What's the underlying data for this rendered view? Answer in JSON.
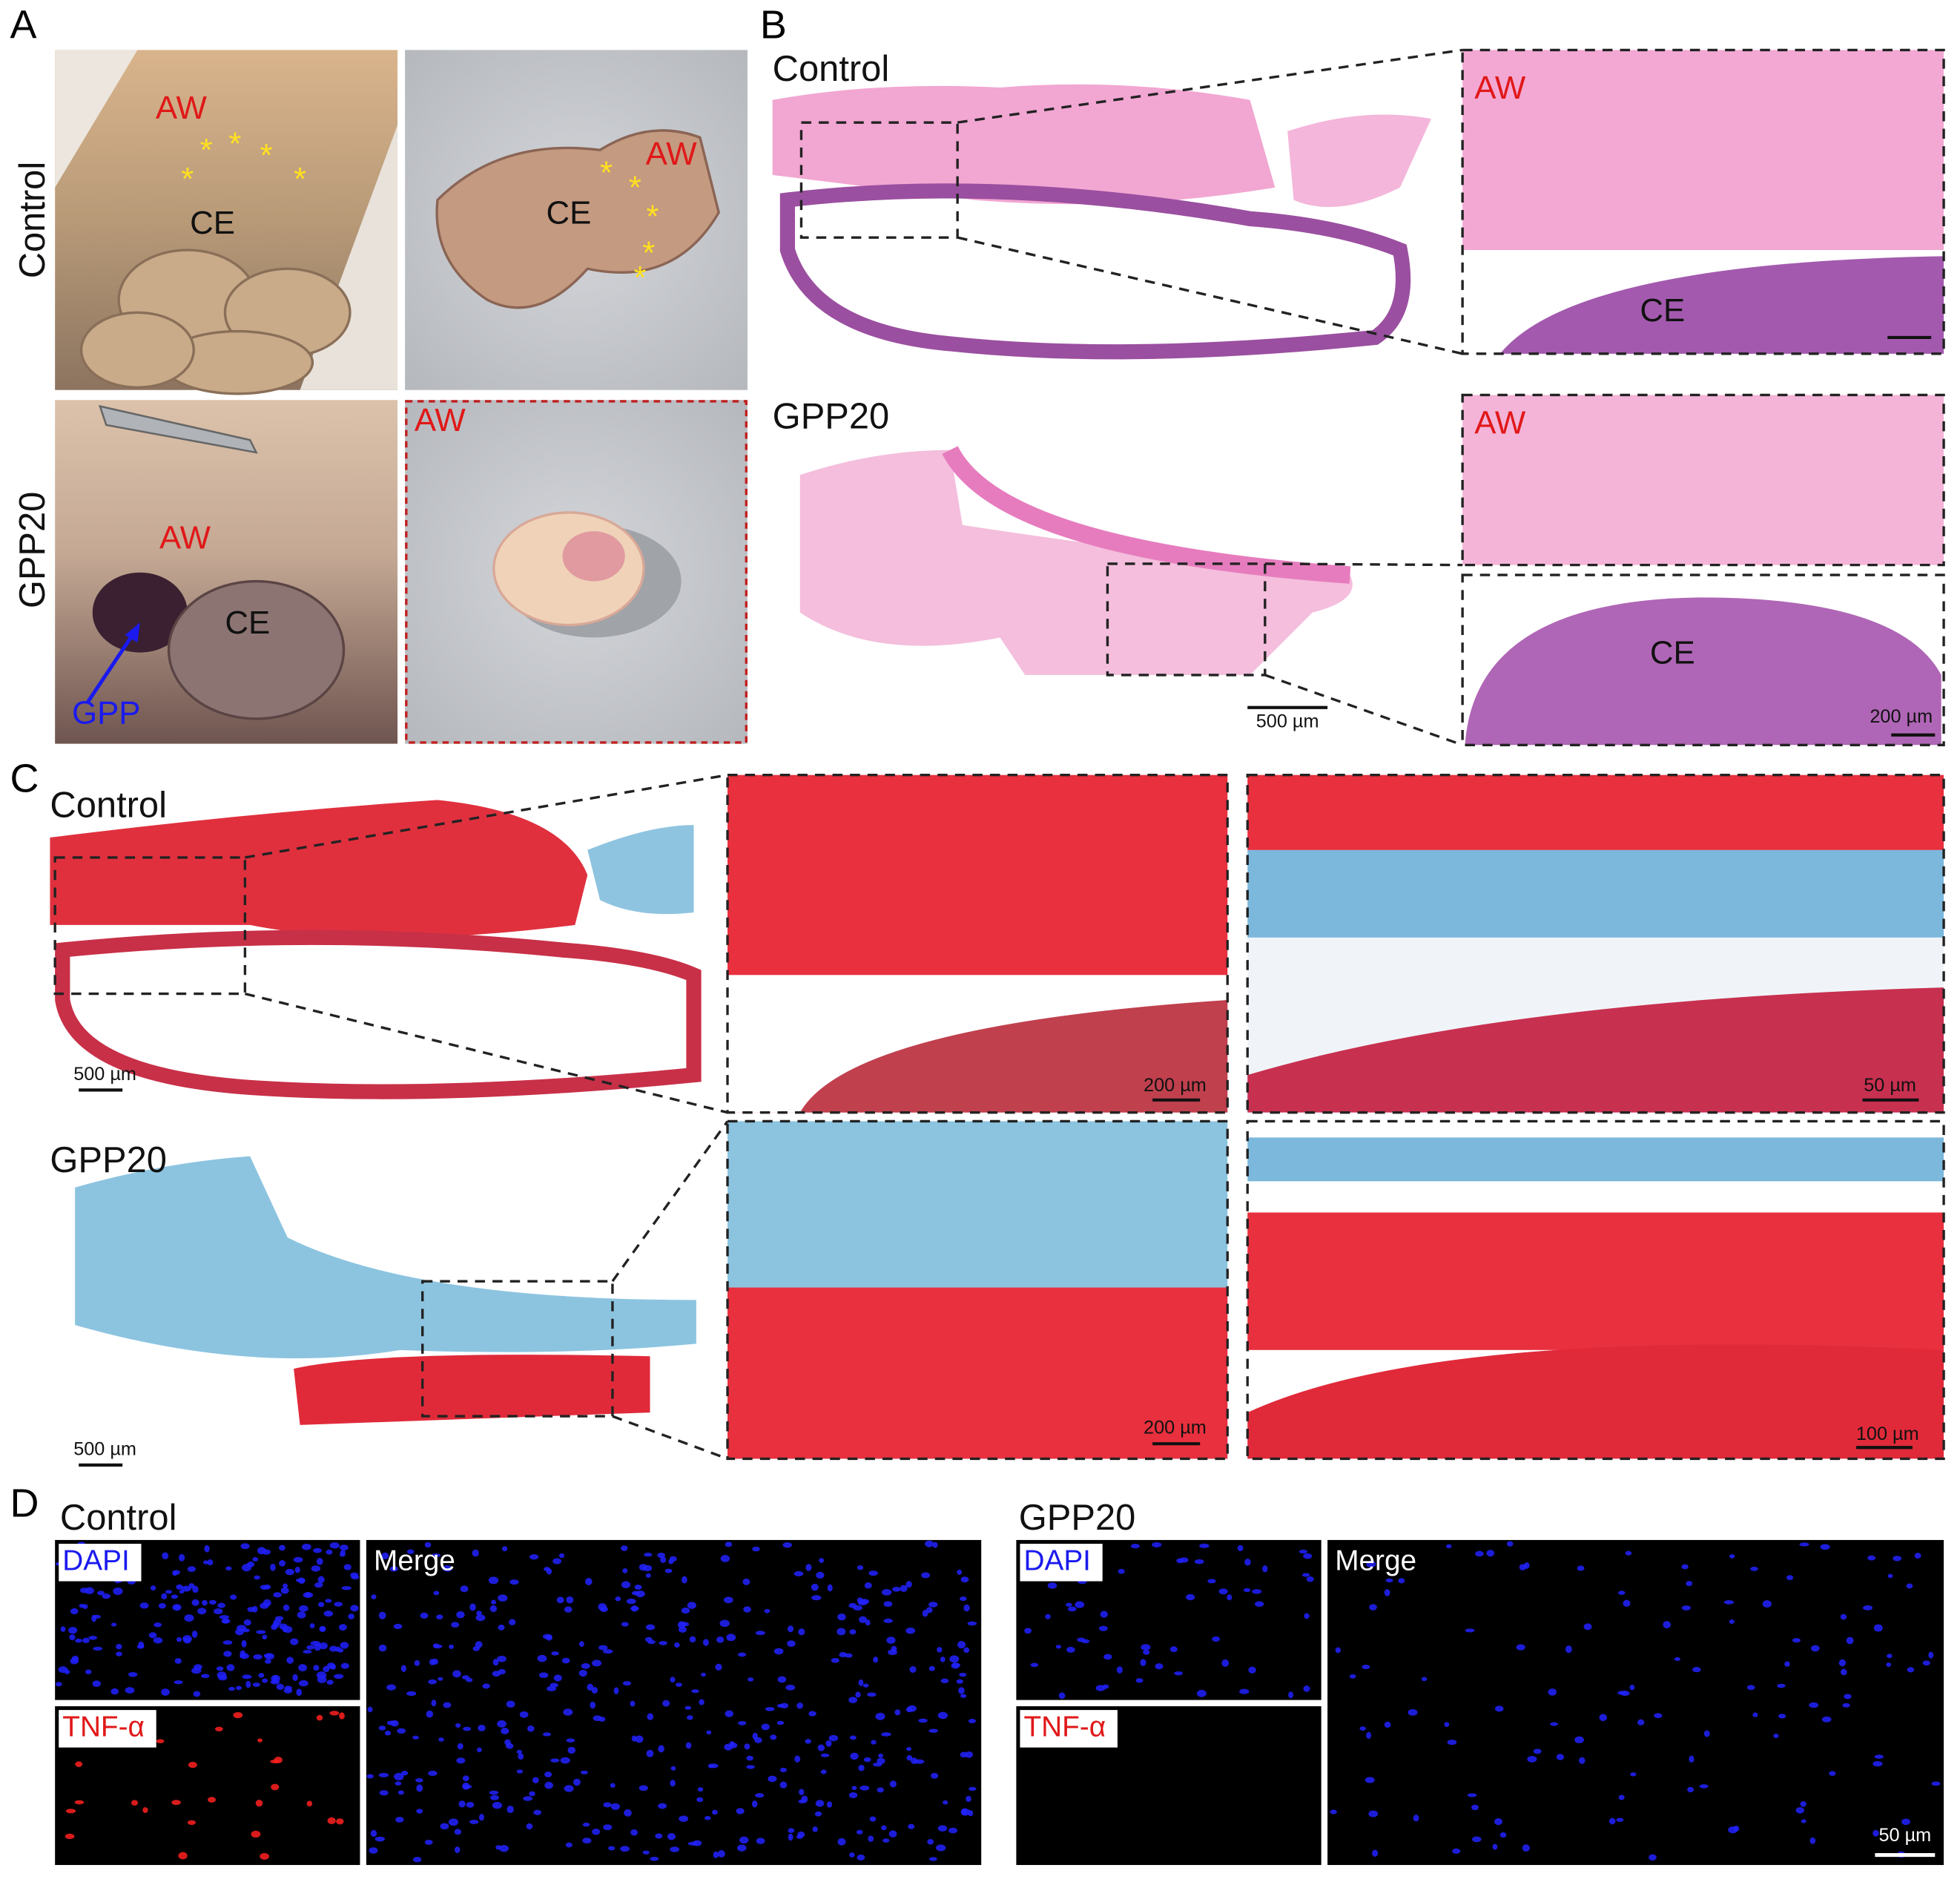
{
  "panel_a": {
    "label": "A",
    "rows": [
      "Control",
      "GPP20"
    ],
    "control_in_situ": [
      "AW",
      "CE"
    ],
    "control_excised": [
      "CE",
      "AW"
    ],
    "gpp20_in_situ": [
      "AW",
      "CE",
      "GPP"
    ],
    "gpp20_excised": [
      "AW"
    ],
    "marker": "*"
  },
  "panel_b": {
    "label": "B",
    "control": {
      "title": "Control",
      "inset_labels": [
        "AW",
        "CE"
      ]
    },
    "gpp20": {
      "title": "GPP20",
      "inset_labels": [
        "AW",
        "CE"
      ],
      "scale_bars": [
        "500 µm",
        "200 µm"
      ]
    }
  },
  "panel_c": {
    "label": "C",
    "control": {
      "title": "Control",
      "scale_bars": [
        "500 µm",
        "200 µm",
        "50 µm"
      ]
    },
    "gpp20": {
      "title": "GPP20",
      "scale_bars": [
        "500 µm",
        "200 µm",
        "100 µm"
      ]
    }
  },
  "panel_d": {
    "label": "D",
    "control": {
      "title": "Control",
      "channels": [
        "DAPI",
        "TNF-α",
        "Merge"
      ]
    },
    "gpp20": {
      "title": "GPP20",
      "channels": [
        "DAPI",
        "TNF-α",
        "Merge"
      ]
    },
    "scale_bar": "50 µm"
  }
}
